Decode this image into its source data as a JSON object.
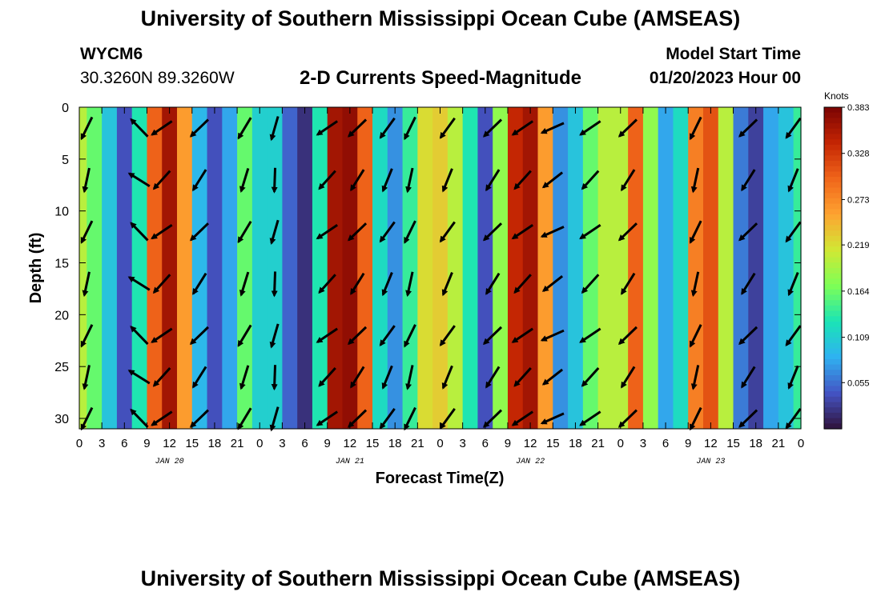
{
  "header": {
    "title": "University of Southern Mississippi Ocean Cube (AMSEAS)",
    "station": "WYCM6",
    "coords": "30.3260N  89.3260W",
    "subtitle": "2-D Currents Speed-Magnitude",
    "model_start_label": "Model Start Time",
    "model_start_value": "01/20/2023 Hour 00"
  },
  "footer": {
    "title": "University of Southern Mississippi Ocean Cube (AMSEAS)"
  },
  "chart_data": {
    "type": "heatmap",
    "title": "2-D Currents Speed-Magnitude",
    "xlabel": "Forecast Time(Z)",
    "ylabel": "Depth (ft)",
    "x_hours_range": [
      0,
      96
    ],
    "x_tick_labels": [
      "0",
      "3",
      "6",
      "9",
      "12",
      "15",
      "18",
      "21",
      "0",
      "3",
      "6",
      "9",
      "12",
      "15",
      "18",
      "21",
      "0",
      "3",
      "6",
      "9",
      "12",
      "15",
      "18",
      "21",
      "0",
      "3",
      "6",
      "9",
      "12",
      "15",
      "18",
      "21",
      "0"
    ],
    "date_labels": [
      {
        "label": "JAN 20",
        "hour": 12
      },
      {
        "label": "JAN 21",
        "hour": 36
      },
      {
        "label": "JAN 22",
        "hour": 60
      },
      {
        "label": "JAN 23",
        "hour": 84
      }
    ],
    "y_range": [
      0,
      31
    ],
    "y_ticks": [
      0,
      5,
      10,
      15,
      20,
      25,
      30
    ],
    "colorbar": {
      "unit": "Knots",
      "min": 0.0,
      "max": 0.383,
      "tick_labels": [
        "0.383",
        "0.328",
        "0.273",
        "0.219",
        "0.164",
        "0.109",
        "0.055"
      ],
      "colors": [
        "#30123b",
        "#4454c4",
        "#2fb2f1",
        "#1ae4b6",
        "#7dff56",
        "#d1e834",
        "#fea331",
        "#f0651a",
        "#c42503",
        "#7a0403"
      ]
    },
    "speed_profile_by_hour": [
      {
        "hour": 0,
        "speed": 0.2
      },
      {
        "hour": 2,
        "speed": 0.16
      },
      {
        "hour": 4,
        "speed": 0.1
      },
      {
        "hour": 6,
        "speed": 0.04
      },
      {
        "hour": 8,
        "speed": 0.13
      },
      {
        "hour": 10,
        "speed": 0.3
      },
      {
        "hour": 12,
        "speed": 0.36
      },
      {
        "hour": 14,
        "speed": 0.26
      },
      {
        "hour": 16,
        "speed": 0.09
      },
      {
        "hour": 18,
        "speed": 0.04
      },
      {
        "hour": 20,
        "speed": 0.08
      },
      {
        "hour": 22,
        "speed": 0.16
      },
      {
        "hour": 24,
        "speed": 0.11
      },
      {
        "hour": 26,
        "speed": 0.11
      },
      {
        "hour": 28,
        "speed": 0.05
      },
      {
        "hour": 30,
        "speed": 0.02
      },
      {
        "hour": 32,
        "speed": 0.13
      },
      {
        "hour": 34,
        "speed": 0.36
      },
      {
        "hour": 36,
        "speed": 0.37
      },
      {
        "hour": 38,
        "speed": 0.3
      },
      {
        "hour": 40,
        "speed": 0.12
      },
      {
        "hour": 42,
        "speed": 0.07
      },
      {
        "hour": 44,
        "speed": 0.14
      },
      {
        "hour": 46,
        "speed": 0.22
      },
      {
        "hour": 48,
        "speed": 0.23
      },
      {
        "hour": 50,
        "speed": 0.2
      },
      {
        "hour": 52,
        "speed": 0.13
      },
      {
        "hour": 54,
        "speed": 0.04
      },
      {
        "hour": 56,
        "speed": 0.18
      },
      {
        "hour": 58,
        "speed": 0.34
      },
      {
        "hour": 60,
        "speed": 0.36
      },
      {
        "hour": 62,
        "speed": 0.26
      },
      {
        "hour": 64,
        "speed": 0.07
      },
      {
        "hour": 66,
        "speed": 0.1
      },
      {
        "hour": 68,
        "speed": 0.16
      },
      {
        "hour": 70,
        "speed": 0.2
      },
      {
        "hour": 72,
        "speed": 0.2
      },
      {
        "hour": 74,
        "speed": 0.3
      },
      {
        "hour": 76,
        "speed": 0.18
      },
      {
        "hour": 78,
        "speed": 0.08
      },
      {
        "hour": 80,
        "speed": 0.12
      },
      {
        "hour": 82,
        "speed": 0.28
      },
      {
        "hour": 84,
        "speed": 0.31
      },
      {
        "hour": 86,
        "speed": 0.2
      },
      {
        "hour": 88,
        "speed": 0.06
      },
      {
        "hour": 90,
        "speed": 0.03
      },
      {
        "hour": 92,
        "speed": 0.08
      },
      {
        "hour": 94,
        "speed": 0.1
      },
      {
        "hour": 96,
        "speed": 0.14
      }
    ],
    "arrow_columns": [
      {
        "hour": 1,
        "angle": -110
      },
      {
        "hour": 8,
        "angle": 140
      },
      {
        "hour": 11,
        "angle": -140
      },
      {
        "hour": 16,
        "angle": -130
      },
      {
        "hour": 22,
        "angle": -115
      },
      {
        "hour": 26,
        "angle": -100
      },
      {
        "hour": 33,
        "angle": -140
      },
      {
        "hour": 37,
        "angle": -130
      },
      {
        "hour": 41,
        "angle": -120
      },
      {
        "hour": 44,
        "angle": -110
      },
      {
        "hour": 49,
        "angle": -120
      },
      {
        "hour": 55,
        "angle": -130
      },
      {
        "hour": 59,
        "angle": -140
      },
      {
        "hour": 63,
        "angle": -150
      },
      {
        "hour": 68,
        "angle": -140
      },
      {
        "hour": 73,
        "angle": -130
      },
      {
        "hour": 82,
        "angle": -110
      },
      {
        "hour": 89,
        "angle": -130
      },
      {
        "hour": 95,
        "angle": -120
      }
    ],
    "arrow_depths": [
      2,
      7,
      12,
      17,
      22,
      26,
      30
    ]
  }
}
